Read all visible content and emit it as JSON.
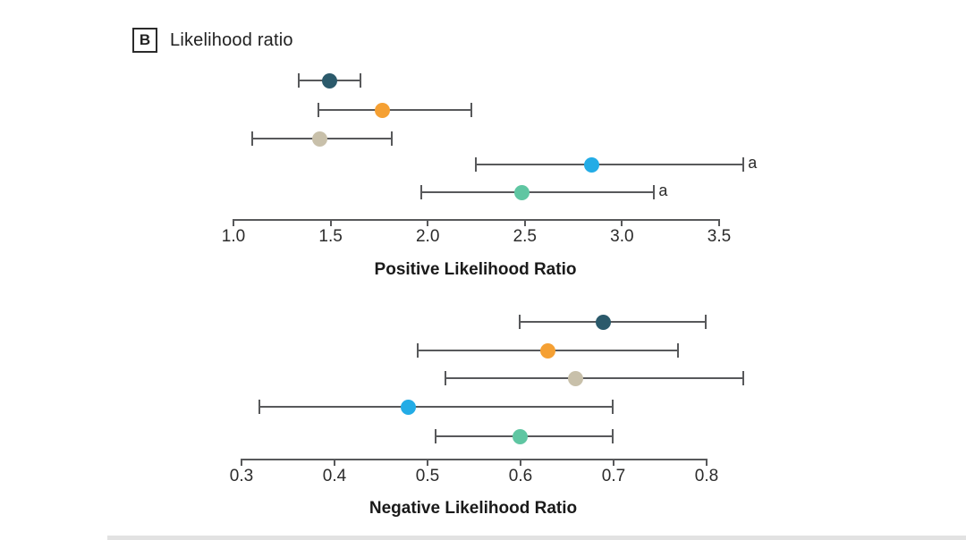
{
  "figure": {
    "panel_label": "B",
    "panel_title": "Likelihood ratio"
  },
  "colors": {
    "line": "#58595b",
    "text": "#2b2b2b",
    "series": [
      "#2b5a6b",
      "#f5a033",
      "#c8c0aa",
      "#23ace6",
      "#5fc6a2"
    ]
  },
  "chart_data": [
    {
      "type": "scatter",
      "subtype": "forest-plot-horizontal-ci",
      "xlabel": "Positive Likelihood Ratio",
      "xlim": [
        1.0,
        3.5
      ],
      "tick_labels": [
        "1.0",
        "1.5",
        "2.0",
        "2.5",
        "3.0",
        "3.5"
      ],
      "tick_values": [
        1.0,
        1.5,
        2.0,
        2.5,
        3.0,
        3.5
      ],
      "grid": false,
      "legend": "none",
      "series": [
        {
          "name": "navy-marker",
          "color": "#2b5a6b",
          "value": 1.5,
          "ci_low": 1.34,
          "ci_high": 1.66,
          "annotation": ""
        },
        {
          "name": "orange-marker",
          "color": "#f5a033",
          "value": 1.77,
          "ci_low": 1.44,
          "ci_high": 2.23,
          "annotation": ""
        },
        {
          "name": "tan-marker",
          "color": "#c8c0aa",
          "value": 1.45,
          "ci_low": 1.1,
          "ci_high": 1.82,
          "annotation": ""
        },
        {
          "name": "blue-marker",
          "color": "#23ace6",
          "value": 2.85,
          "ci_low": 2.25,
          "ci_high": 3.63,
          "annotation": "a"
        },
        {
          "name": "teal-marker",
          "color": "#5fc6a2",
          "value": 2.49,
          "ci_low": 1.97,
          "ci_high": 3.17,
          "annotation": "a"
        }
      ]
    },
    {
      "type": "scatter",
      "subtype": "forest-plot-horizontal-ci",
      "xlabel": "Negative Likelihood Ratio",
      "xlim": [
        0.3,
        0.8
      ],
      "tick_labels": [
        "0.3",
        "0.4",
        "0.5",
        "0.6",
        "0.7",
        "0.8"
      ],
      "tick_values": [
        0.3,
        0.4,
        0.5,
        0.6,
        0.7,
        0.8
      ],
      "grid": false,
      "legend": "none",
      "series": [
        {
          "name": "navy-marker",
          "color": "#2b5a6b",
          "value": 0.69,
          "ci_low": 0.6,
          "ci_high": 0.8,
          "annotation": ""
        },
        {
          "name": "orange-marker",
          "color": "#f5a033",
          "value": 0.63,
          "ci_low": 0.49,
          "ci_high": 0.77,
          "annotation": ""
        },
        {
          "name": "tan-marker",
          "color": "#c8c0aa",
          "value": 0.66,
          "ci_low": 0.52,
          "ci_high": 0.84,
          "annotation": ""
        },
        {
          "name": "blue-marker",
          "color": "#23ace6",
          "value": 0.48,
          "ci_low": 0.32,
          "ci_high": 0.7,
          "annotation": ""
        },
        {
          "name": "teal-marker",
          "color": "#5fc6a2",
          "value": 0.6,
          "ci_low": 0.51,
          "ci_high": 0.7,
          "annotation": ""
        }
      ]
    }
  ]
}
